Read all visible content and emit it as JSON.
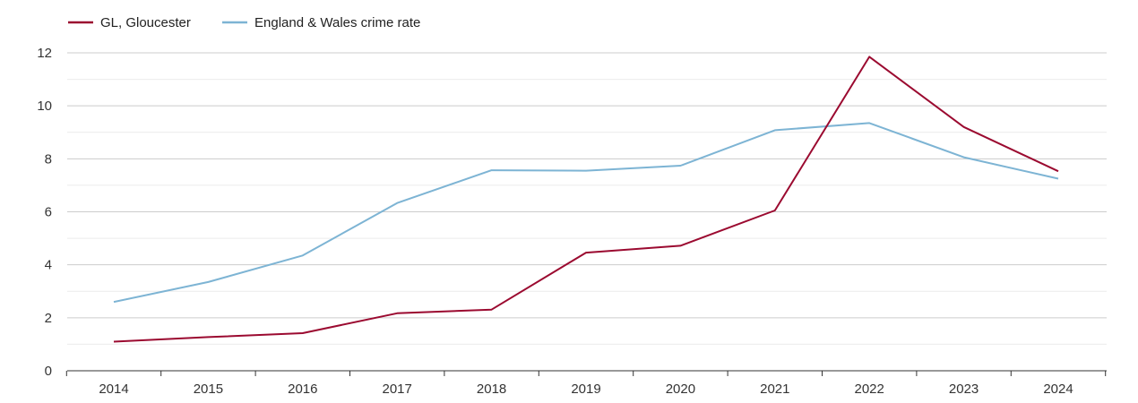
{
  "chart_data": {
    "type": "line",
    "title": "",
    "xlabel": "",
    "ylabel": "",
    "x": [
      "2014",
      "2015",
      "2016",
      "2017",
      "2018",
      "2019",
      "2020",
      "2021",
      "2022",
      "2023",
      "2024"
    ],
    "ylim": [
      0,
      12
    ],
    "yticks": [
      "0",
      "2",
      "4",
      "6",
      "8",
      "10",
      "12"
    ],
    "grid": true,
    "legend_position": "top-left",
    "series": [
      {
        "name": "GL, Gloucester",
        "color": "#9b0a30",
        "values": [
          1.1,
          1.27,
          1.42,
          2.17,
          2.31,
          4.46,
          4.72,
          6.05,
          11.85,
          9.2,
          7.53
        ]
      },
      {
        "name": "England & Wales crime rate",
        "color": "#7db4d4",
        "values": [
          2.6,
          3.35,
          4.35,
          6.33,
          7.57,
          7.55,
          7.74,
          9.08,
          9.35,
          8.06,
          7.25
        ]
      }
    ]
  }
}
